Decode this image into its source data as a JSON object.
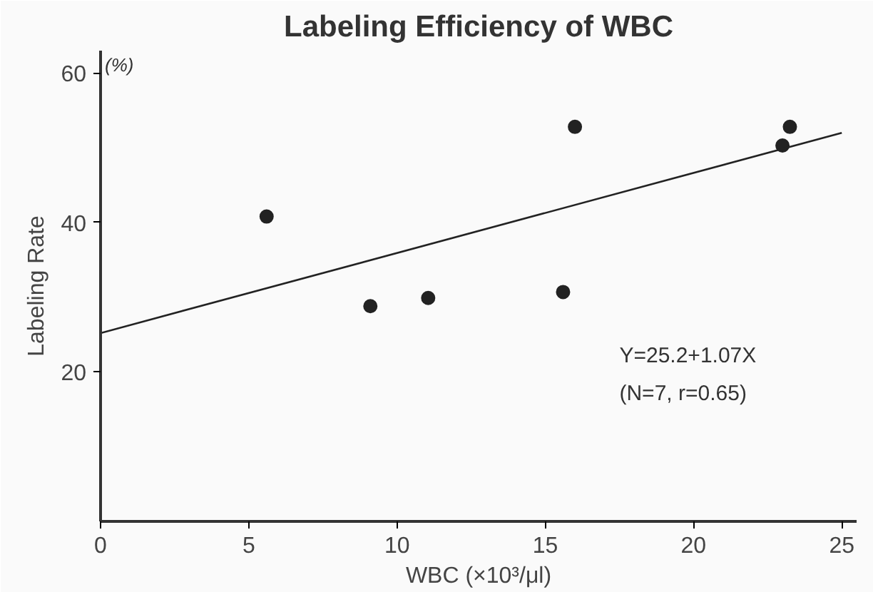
{
  "chart_data": {
    "type": "scatter",
    "title": "Labeling Efficiency of WBC",
    "xlabel": "WBC (×10³/μl)",
    "ylabel": "Labeling Rate",
    "xlim": [
      0,
      25.5
    ],
    "ylim": [
      0,
      63
    ],
    "xticks": [
      0,
      5,
      10,
      15,
      20,
      25
    ],
    "yticks": [
      20,
      40,
      60
    ],
    "grid": false,
    "series": [
      {
        "marker": "circle",
        "color": "#222222",
        "x": [
          5.6,
          9.1,
          11.05,
          15.6,
          16.0,
          23.0,
          23.25
        ],
        "values": [
          40.8,
          28.8,
          29.9,
          30.7,
          52.8,
          50.3,
          52.8
        ]
      },
      {
        "type": "line",
        "color": "#222222",
        "line_style": "solid",
        "x": [
          0,
          25
        ],
        "values": [
          25.2,
          52.0
        ]
      }
    ],
    "annotations": [
      "(%)",
      "Y=25.2+1.07X",
      "(N=7, r=0.65)"
    ]
  }
}
